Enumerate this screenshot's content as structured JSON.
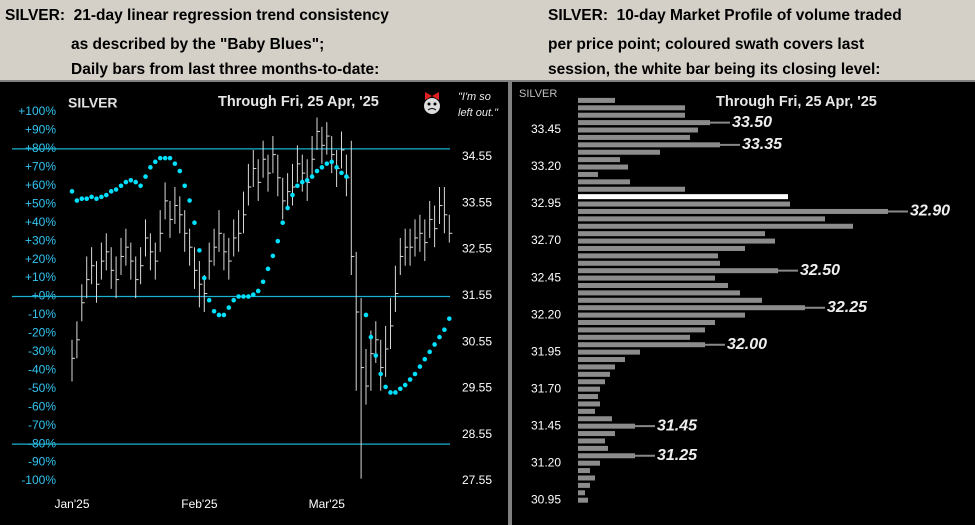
{
  "header": {
    "left": [
      "SILVER:  21-day linear regression trend consistency",
      "as described by the \"Baby Blues\";",
      "Daily bars from last three months-to-date:"
    ],
    "right": [
      "SILVER:  10-day Market Profile of volume traded",
      "per price point; coloured swath covers last",
      "session, the white bar being its closing level:"
    ]
  },
  "chart_data": [
    {
      "type": "hlc",
      "title": "SILVER",
      "subtitle": "Through Fri, 25 Apr, '25",
      "annotation": [
        "\"I'm so",
        "left out.\""
      ],
      "categories": [
        "Jan'25",
        null,
        null,
        null,
        null,
        null,
        null,
        null,
        null,
        null,
        null,
        null,
        null,
        null,
        null,
        null,
        null,
        null,
        null,
        null,
        null,
        null,
        null,
        null,
        null,
        null,
        "Feb'25",
        null,
        null,
        null,
        null,
        null,
        null,
        null,
        null,
        null,
        null,
        null,
        null,
        null,
        null,
        null,
        null,
        null,
        null,
        null,
        null,
        null,
        null,
        null,
        null,
        null,
        "Mar'25",
        null,
        null,
        null,
        null,
        null,
        null,
        null,
        null,
        null,
        null,
        null,
        null,
        null,
        null,
        null,
        null,
        null,
        null,
        null,
        null,
        null,
        null,
        null,
        null,
        null
      ],
      "high": [
        30.6,
        31.0,
        31.8,
        32.4,
        32.6,
        32.3,
        32.7,
        32.9,
        32.6,
        32.4,
        32.8,
        33.0,
        32.7,
        32.4,
        32.6,
        33.2,
        32.9,
        32.7,
        33.4,
        34.0,
        33.6,
        33.9,
        33.7,
        33.4,
        33.0,
        32.6,
        32.3,
        32.0,
        32.7,
        33.0,
        33.4,
        32.9,
        32.8,
        33.2,
        33.4,
        33.8,
        34.4,
        34.7,
        34.5,
        34.9,
        34.6,
        35.0,
        34.6,
        34.1,
        34.2,
        34.4,
        34.8,
        34.6,
        34.5,
        35.0,
        35.4,
        35.2,
        35.3,
        35.0,
        34.7,
        35.1,
        34.6,
        34.9,
        32.5,
        31.5,
        30.4,
        30.8,
        31.0,
        30.6,
        30.9,
        31.5,
        32.2,
        32.8,
        33.0,
        33.0,
        33.2,
        33.3,
        33.2,
        33.6,
        33.5,
        33.9,
        33.9,
        33.3
      ],
      "low": [
        29.7,
        30.2,
        31.0,
        31.5,
        31.8,
        31.4,
        31.9,
        32.1,
        31.7,
        31.5,
        32.0,
        32.2,
        31.9,
        31.5,
        31.8,
        32.4,
        32.1,
        31.9,
        32.5,
        33.2,
        32.8,
        33.1,
        32.9,
        32.5,
        32.2,
        31.7,
        31.3,
        31.2,
        31.9,
        32.2,
        32.5,
        32.1,
        31.9,
        32.4,
        32.5,
        32.9,
        33.5,
        33.9,
        33.6,
        34.1,
        33.8,
        34.2,
        33.7,
        33.2,
        33.4,
        33.5,
        34.0,
        33.8,
        33.6,
        34.1,
        34.7,
        34.4,
        34.6,
        34.2,
        33.9,
        34.3,
        33.7,
        32.0,
        29.5,
        27.6,
        29.2,
        29.5,
        30.1,
        29.5,
        29.8,
        30.4,
        31.2,
        32.0,
        32.2,
        32.2,
        32.4,
        32.5,
        32.3,
        32.8,
        32.6,
        33.1,
        32.9,
        32.7
      ],
      "close": [
        30.2,
        30.6,
        31.4,
        31.9,
        32.2,
        31.8,
        32.3,
        32.5,
        32.1,
        31.9,
        32.4,
        32.6,
        32.3,
        31.9,
        32.2,
        32.8,
        32.5,
        32.3,
        32.9,
        33.6,
        33.2,
        33.5,
        33.3,
        32.9,
        32.6,
        32.1,
        31.8,
        31.6,
        32.3,
        32.6,
        32.9,
        32.5,
        32.3,
        32.8,
        32.9,
        33.3,
        33.9,
        34.3,
        34.0,
        34.5,
        34.2,
        34.6,
        34.1,
        33.6,
        33.8,
        33.9,
        34.4,
        34.2,
        34.0,
        34.5,
        35.1,
        34.8,
        35.0,
        34.6,
        34.3,
        34.7,
        34.1,
        32.4,
        31.2,
        30.0,
        29.6,
        30.3,
        30.6,
        30.0,
        30.4,
        30.9,
        31.6,
        32.4,
        32.6,
        32.6,
        32.8,
        32.9,
        32.7,
        33.2,
        33.0,
        33.5,
        33.3,
        32.9
      ],
      "oscillator": {
        "color": "#00e0ff",
        "values": [
          57,
          52,
          53,
          53,
          54,
          53,
          54,
          55,
          57,
          58,
          60,
          62,
          63,
          62,
          60,
          65,
          70,
          73,
          75,
          75,
          75,
          72,
          68,
          60,
          52,
          40,
          25,
          10,
          -2,
          -8,
          -10,
          -10,
          -6,
          -2,
          0,
          0,
          0,
          1,
          3,
          8,
          15,
          22,
          30,
          40,
          48,
          55,
          60,
          62,
          63,
          65,
          68,
          70,
          72,
          73,
          70,
          67,
          65,
          null,
          null,
          null,
          -10,
          -22,
          -32,
          -42,
          -49,
          -52,
          -52,
          -50,
          -48,
          -45,
          -42,
          -38,
          -34,
          -30,
          -26,
          -22,
          -18,
          -12
        ]
      },
      "ylim": [
        -100,
        100
      ],
      "yticks": [
        {
          "value": 100,
          "label": "+100%"
        },
        {
          "value": 90,
          "label": "+90%"
        },
        {
          "value": 80,
          "label": "+80%"
        },
        {
          "value": 70,
          "label": "+70%"
        },
        {
          "value": 60,
          "label": "+60%"
        },
        {
          "value": 50,
          "label": "+50%"
        },
        {
          "value": 40,
          "label": "+40%"
        },
        {
          "value": 30,
          "label": "+30%"
        },
        {
          "value": 20,
          "label": "+20%"
        },
        {
          "value": 10,
          "label": "+10%"
        },
        {
          "value": 0,
          "label": "+0%"
        },
        {
          "value": -10,
          "label": "-10%"
        },
        {
          "value": -20,
          "label": "-20%"
        },
        {
          "value": -30,
          "label": "-30%"
        },
        {
          "value": -40,
          "label": "-40%"
        },
        {
          "value": -50,
          "label": "-50%"
        },
        {
          "value": -60,
          "label": "-60%"
        },
        {
          "value": -70,
          "label": "-70%"
        },
        {
          "value": -80,
          "label": "-80%"
        },
        {
          "value": -90,
          "label": "-90%"
        },
        {
          "value": -100,
          "label": "-100%"
        }
      ],
      "y2lim": [
        27.55,
        35.52
      ],
      "y2ticks": [
        34.55,
        33.55,
        32.55,
        31.55,
        30.55,
        29.55,
        28.55,
        27.55
      ],
      "hlines": [
        80,
        0,
        -80
      ],
      "bar_color": "#d8d8d8",
      "line_color": "#1ab0d0",
      "tick_color": "#33c4f0"
    },
    {
      "type": "hbar",
      "title": "SILVER",
      "subtitle": "Through Fri, 25 Apr, '25",
      "levels": [
        33.65,
        33.6,
        33.55,
        33.5,
        33.45,
        33.4,
        33.35,
        33.3,
        33.25,
        33.2,
        33.15,
        33.1,
        33.05,
        33.0,
        32.95,
        32.9,
        32.85,
        32.8,
        32.75,
        32.7,
        32.65,
        32.6,
        32.55,
        32.5,
        32.45,
        32.4,
        32.35,
        32.3,
        32.25,
        32.2,
        32.15,
        32.1,
        32.05,
        32.0,
        31.95,
        31.9,
        31.85,
        31.8,
        31.75,
        31.7,
        31.65,
        31.6,
        31.55,
        31.5,
        31.45,
        31.4,
        31.35,
        31.3,
        31.25,
        31.2,
        31.15,
        31.1,
        31.05,
        31.0,
        30.95
      ],
      "values": [
        37,
        107,
        107,
        132,
        120,
        112,
        142,
        82,
        42,
        50,
        20,
        52,
        107,
        210,
        212,
        310,
        247,
        275,
        187,
        197,
        167,
        140,
        142,
        200,
        137,
        150,
        162,
        184,
        227,
        167,
        137,
        127,
        112,
        127,
        62,
        47,
        37,
        32,
        27,
        22,
        20,
        22,
        17,
        34,
        57,
        37,
        27,
        30,
        57,
        22,
        12,
        17,
        12,
        7,
        10
      ],
      "color": "#8c8c8c",
      "closing_level": 33.0,
      "closing_color": "#ffffff",
      "ylim": [
        30.85,
        33.7
      ],
      "yticks": [
        33.45,
        {
          "value": 33.2,
          "label": "33.20"
        },
        32.95,
        {
          "value": 32.7,
          "label": "32.70"
        },
        32.45,
        {
          "value": 32.2,
          "label": "32.20"
        },
        31.95,
        {
          "value": 31.7,
          "label": "31.70"
        },
        31.45,
        {
          "value": 31.2,
          "label": "31.20"
        },
        30.95
      ],
      "annotations": [
        {
          "value": 33.5,
          "label": "33.50"
        },
        {
          "value": 33.35,
          "label": "33.35"
        },
        {
          "value": 32.9,
          "label": "32.90"
        },
        {
          "value": 32.5,
          "label": "32.50"
        },
        {
          "value": 32.25,
          "label": "32.25"
        },
        {
          "value": 32.0,
          "label": "32.00"
        },
        {
          "value": 31.45,
          "label": "31.45"
        },
        {
          "value": 31.25,
          "label": "31.25"
        }
      ]
    }
  ]
}
